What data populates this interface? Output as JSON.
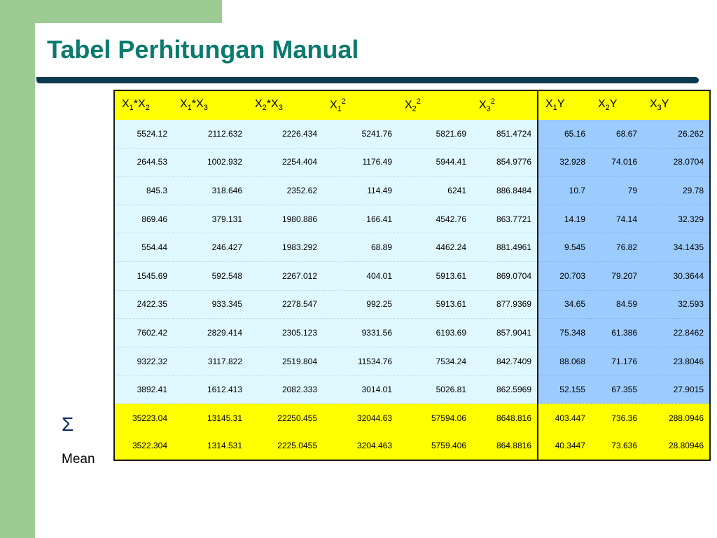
{
  "slide": {
    "title": "Tabel Perhitungan Manual",
    "sum_label": "Σ",
    "mean_label": "Mean"
  },
  "colors": {
    "accent_green": "#9ccc94",
    "title_teal": "#0b7a6e",
    "rule_navy": "#0d3a4f",
    "header_yellow": "#ffff00",
    "body_light_cyan": "#dff8ff",
    "body_blue": "#9ccbff"
  },
  "table": {
    "headers": [
      {
        "pre": "X",
        "s1": "1",
        "mid": "*X",
        "s2": "2",
        "sup": ""
      },
      {
        "pre": "X",
        "s1": "1",
        "mid": "*X",
        "s2": "3",
        "sup": ""
      },
      {
        "pre": "X",
        "s1": "2",
        "mid": "*X",
        "s2": "3",
        "sup": ""
      },
      {
        "pre": "X",
        "s1": "1",
        "mid": "",
        "s2": "",
        "sup": "2"
      },
      {
        "pre": "X",
        "s1": "2",
        "mid": "",
        "s2": "",
        "sup": "2"
      },
      {
        "pre": "X",
        "s1": "3",
        "mid": "",
        "s2": "",
        "sup": "2"
      },
      {
        "pre": "X",
        "s1": "1",
        "mid": "Y",
        "s2": "",
        "sup": ""
      },
      {
        "pre": "X",
        "s1": "2",
        "mid": "Y",
        "s2": "",
        "sup": ""
      },
      {
        "pre": "X",
        "s1": "3",
        "mid": "Y",
        "s2": "",
        "sup": ""
      }
    ],
    "rows": [
      [
        "5524.12",
        "2112.632",
        "2226.434",
        "5241.76",
        "5821.69",
        "851.4724",
        "65.16",
        "68.67",
        "26.262"
      ],
      [
        "2644.53",
        "1002.932",
        "2254.404",
        "1176.49",
        "5944.41",
        "854.9776",
        "32.928",
        "74.016",
        "28.0704"
      ],
      [
        "845.3",
        "318.646",
        "2352.62",
        "114.49",
        "6241",
        "886.8484",
        "10.7",
        "79",
        "29.78"
      ],
      [
        "869.46",
        "379.131",
        "1980.886",
        "166.41",
        "4542.76",
        "863.7721",
        "14.19",
        "74.14",
        "32.329"
      ],
      [
        "554.44",
        "246.427",
        "1983.292",
        "68.89",
        "4462.24",
        "881.4961",
        "9.545",
        "76.82",
        "34.1435"
      ],
      [
        "1545.69",
        "592.548",
        "2267.012",
        "404.01",
        "5913.61",
        "869.0704",
        "20.703",
        "79.207",
        "30.3644"
      ],
      [
        "2422.35",
        "933.345",
        "2278.547",
        "992.25",
        "5913.61",
        "877.9369",
        "34.65",
        "84.59",
        "32.593"
      ],
      [
        "7602.42",
        "2829.414",
        "2305.123",
        "9331.56",
        "6193.69",
        "857.9041",
        "75.348",
        "61.386",
        "22.8462"
      ],
      [
        "9322.32",
        "3117.822",
        "2519.804",
        "11534.76",
        "7534.24",
        "842.7409",
        "88.068",
        "71.176",
        "23.8046"
      ],
      [
        "3892.41",
        "1612.413",
        "2082.333",
        "3014.01",
        "5026.81",
        "862.5969",
        "52.155",
        "67.355",
        "27.9015"
      ]
    ],
    "sum": [
      "35223.04",
      "13145.31",
      "22250.455",
      "32044.63",
      "57594.06",
      "8648.816",
      "403.447",
      "736.36",
      "288.0946"
    ],
    "mean": [
      "3522.304",
      "1314.531",
      "2225.0455",
      "3204.463",
      "5759.406",
      "864.8816",
      "40.3447",
      "73.636",
      "28.80946"
    ]
  }
}
